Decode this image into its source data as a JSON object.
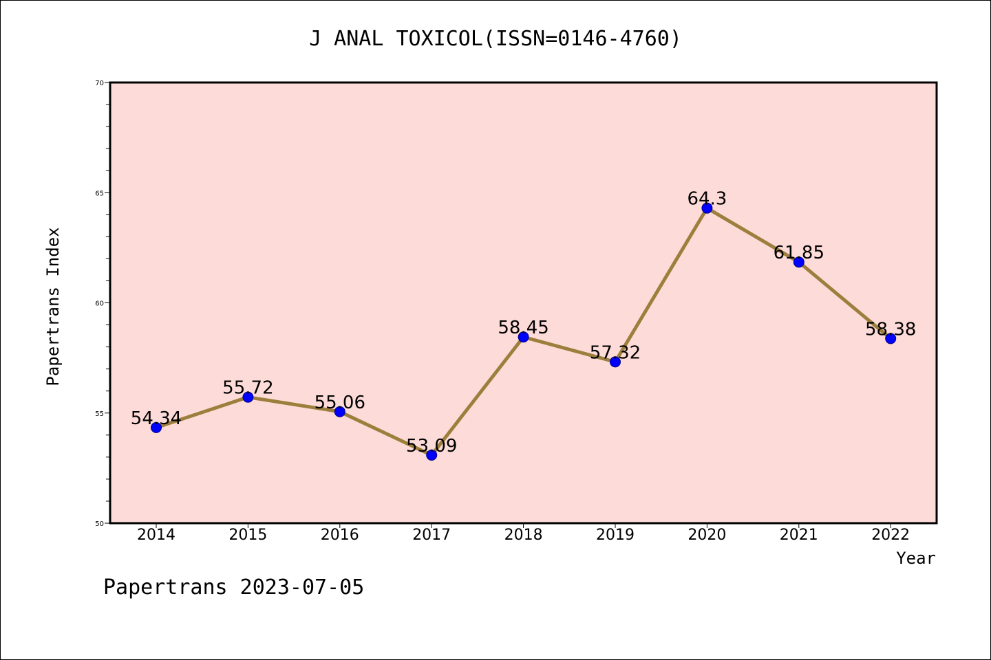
{
  "chart_data": {
    "type": "line",
    "title": "J ANAL TOXICOL(ISSN=0146-4760)",
    "xlabel": "Year",
    "ylabel": "Papertrans Index",
    "categories": [
      "2014",
      "2015",
      "2016",
      "2017",
      "2018",
      "2019",
      "2020",
      "2021",
      "2022"
    ],
    "series": [
      {
        "values": [
          54.34,
          55.72,
          55.06,
          53.09,
          58.45,
          57.32,
          64.3,
          61.85,
          58.38
        ],
        "labels": [
          "54.34",
          "55.72",
          "55.06",
          "53.09",
          "58.45",
          "57.32",
          "64.3",
          "61.85",
          "58.38"
        ]
      }
    ],
    "ylim": [
      50,
      70
    ],
    "yticks": [
      "50",
      "55",
      "60",
      "65",
      "70"
    ],
    "grid": false,
    "colors": {
      "plot_background": "#fddbd8",
      "line": "#9c7f3c",
      "marker": "#0000ff"
    }
  },
  "footer": "Papertrans 2023-07-05"
}
